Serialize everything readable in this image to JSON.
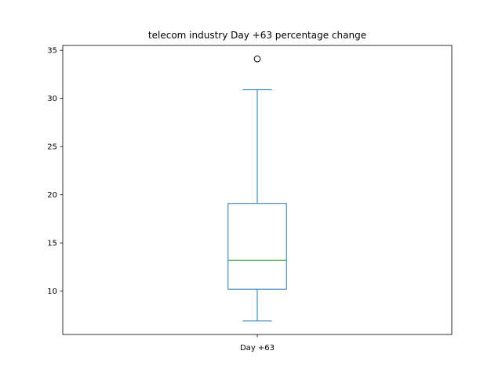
{
  "chart_data": {
    "type": "box",
    "title": "telecom industry Day +63 percentage change",
    "xlabel": "",
    "ylabel": "",
    "categories": [
      "Day +63"
    ],
    "ylim": [
      5.5,
      35.5
    ],
    "yticks": [
      10,
      15,
      20,
      25,
      30,
      35
    ],
    "ytick_labels": [
      "10",
      "15",
      "20",
      "25",
      "30",
      "35"
    ],
    "grid": false,
    "boxes": [
      {
        "name": "Day +63",
        "whisker_low": 6.9,
        "q1": 10.2,
        "median": 13.2,
        "q3": 19.1,
        "whisker_high": 30.9,
        "outliers": [
          34.1
        ]
      }
    ],
    "colors": {
      "box": "#1f77b4",
      "median": "#2ca02c",
      "outlier": "#000000",
      "axes": "#000000"
    }
  }
}
